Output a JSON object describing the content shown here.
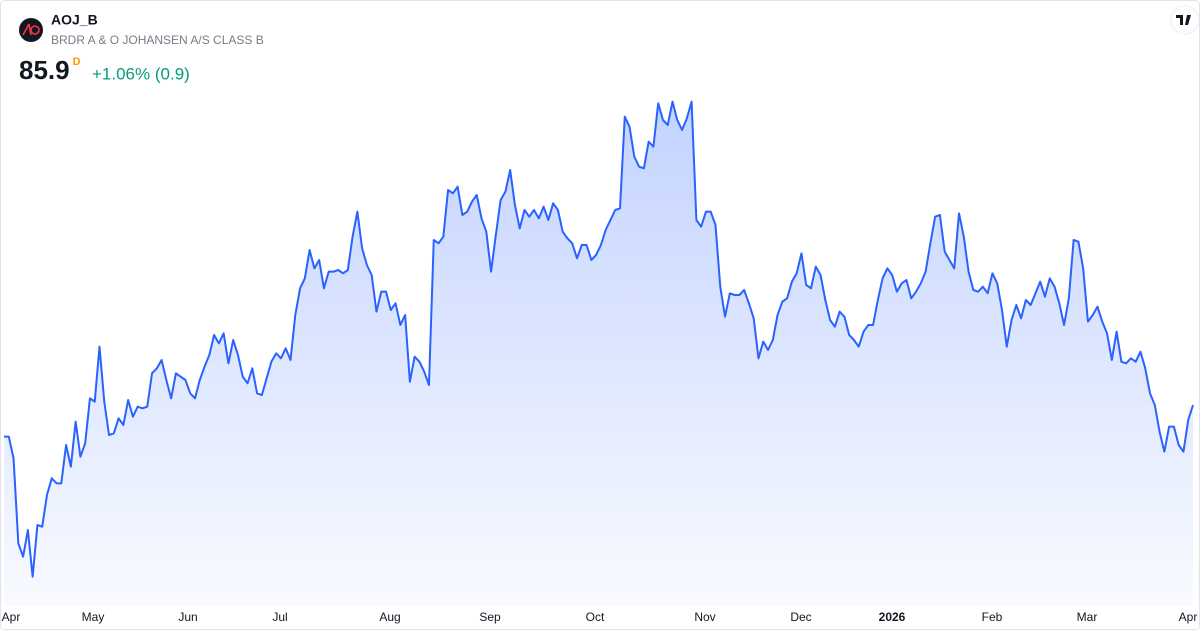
{
  "header": {
    "symbol": "AOJ_B",
    "name": "BRDR A & O JOHANSEN A/S CLASS B",
    "price": 85.9,
    "interval": "D",
    "change": "+1.06% (0.9)"
  },
  "chart_data": {
    "type": "area",
    "color": "#2962ff",
    "ylim": [
      73.6,
      106.6
    ],
    "x_labels": [
      "Apr",
      "May",
      "Jun",
      "Jul",
      "Aug",
      "Sep",
      "Oct",
      "Nov",
      "Dec",
      "2026",
      "Feb",
      "Mar",
      "Apr"
    ],
    "values": [
      84.0,
      84.0,
      82.7,
      77.6,
      76.8,
      78.4,
      75.6,
      78.7,
      78.6,
      80.5,
      81.5,
      81.2,
      81.2,
      83.5,
      82.2,
      84.9,
      82.8,
      83.6,
      86.3,
      86.1,
      89.4,
      86.1,
      84.1,
      84.2,
      85.1,
      84.7,
      86.2,
      85.2,
      85.8,
      85.7,
      85.8,
      87.8,
      88.1,
      88.6,
      87.4,
      86.3,
      87.8,
      87.6,
      87.4,
      86.6,
      86.3,
      87.4,
      88.2,
      88.9,
      90.1,
      89.6,
      90.2,
      88.4,
      89.8,
      88.9,
      87.6,
      87.2,
      88.1,
      86.6,
      86.5,
      87.5,
      88.5,
      89.0,
      88.7,
      89.3,
      88.6,
      91.3,
      92.9,
      93.5,
      95.2,
      94.1,
      94.6,
      92.9,
      93.9,
      93.9,
      94.0,
      93.8,
      94.0,
      96.0,
      97.5,
      95.3,
      94.3,
      93.7,
      91.5,
      92.7,
      92.7,
      91.6,
      92.0,
      90.7,
      91.3,
      87.3,
      88.8,
      88.5,
      87.9,
      87.1,
      95.8,
      95.6,
      96.0,
      98.8,
      98.6,
      99.0,
      97.3,
      97.5,
      98.1,
      98.5,
      97.1,
      96.3,
      93.9,
      96.1,
      98.2,
      98.7,
      100.0,
      97.9,
      96.5,
      97.6,
      97.2,
      97.6,
      97.1,
      97.8,
      97.0,
      98.0,
      97.6,
      96.3,
      95.9,
      95.6,
      94.7,
      95.5,
      95.5,
      94.6,
      94.9,
      95.5,
      96.4,
      97.0,
      97.6,
      97.7,
      103.2,
      102.6,
      100.8,
      100.2,
      100.1,
      101.7,
      101.4,
      104.0,
      103.0,
      102.7,
      104.1,
      103.0,
      102.4,
      103.1,
      104.1,
      97.0,
      96.6,
      97.5,
      97.5,
      96.7,
      93.0,
      91.2,
      92.6,
      92.5,
      92.5,
      92.8,
      92.0,
      91.1,
      88.7,
      89.7,
      89.2,
      89.8,
      91.3,
      92.1,
      92.3,
      93.3,
      93.8,
      95.0,
      93.1,
      92.9,
      94.2,
      93.7,
      92.2,
      91.0,
      90.6,
      91.5,
      91.2,
      90.1,
      89.8,
      89.4,
      90.3,
      90.7,
      90.7,
      92.2,
      93.5,
      94.1,
      93.7,
      92.7,
      93.2,
      93.4,
      92.3,
      92.7,
      93.2,
      93.9,
      95.6,
      97.2,
      97.3,
      95.1,
      94.6,
      94.1,
      97.4,
      96.0,
      93.9,
      92.8,
      92.7,
      93.0,
      92.6,
      93.8,
      93.2,
      91.6,
      89.4,
      91.0,
      91.9,
      91.1,
      92.2,
      91.9,
      92.6,
      93.3,
      92.4,
      93.5,
      93.0,
      92.0,
      90.7,
      92.3,
      95.8,
      95.7,
      94.1,
      90.9,
      91.3,
      91.8,
      90.9,
      90.2,
      88.6,
      90.3,
      88.5,
      88.4,
      88.7,
      88.5,
      89.1,
      88.1,
      86.6,
      85.9,
      84.3,
      83.1,
      84.6,
      84.6,
      83.5,
      83.1,
      85.0,
      85.9
    ]
  }
}
